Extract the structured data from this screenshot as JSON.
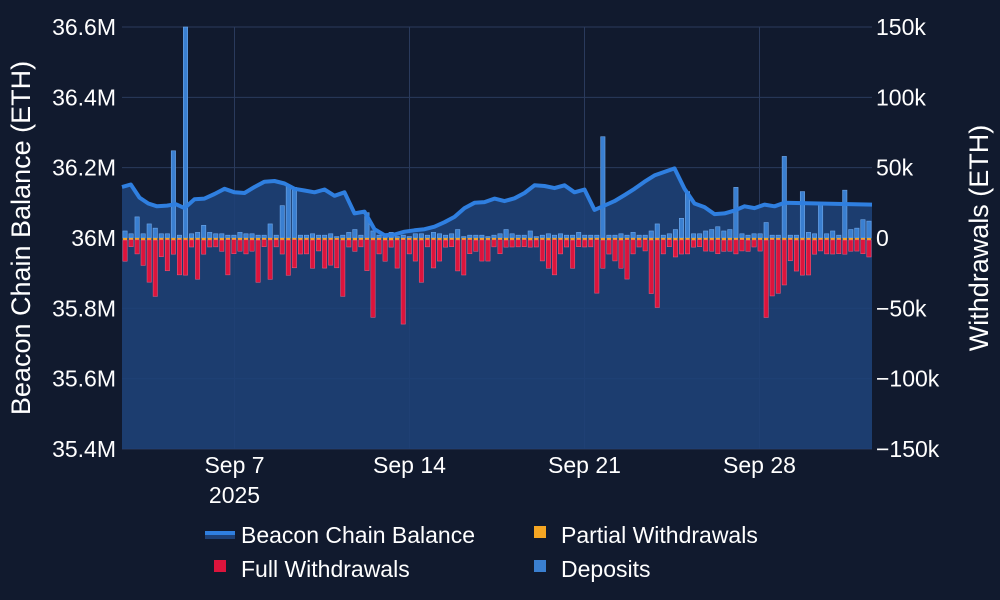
{
  "chart_data": {
    "type": "bar+area",
    "title": "",
    "x_ticks": [
      {
        "label": "Sep 7",
        "sublabel": "2025",
        "day": 7
      },
      {
        "label": "Sep 14",
        "sublabel": "",
        "day": 14
      },
      {
        "label": "Sep 21",
        "sublabel": "",
        "day": 21
      },
      {
        "label": "Sep 28",
        "sublabel": "",
        "day": 28
      }
    ],
    "x_range_days": [
      2.5,
      32.5
    ],
    "y_left": {
      "label": "Beacon Chain Balance (ETH)",
      "range": [
        35.4,
        36.6
      ],
      "ticks": [
        {
          "value": 35.4,
          "label": "35.4M"
        },
        {
          "value": 35.6,
          "label": "35.6M"
        },
        {
          "value": 35.8,
          "label": "35.8M"
        },
        {
          "value": 36.0,
          "label": "36M"
        },
        {
          "value": 36.2,
          "label": "36.2M"
        },
        {
          "value": 36.4,
          "label": "36.4M"
        },
        {
          "value": 36.6,
          "label": "36.6M"
        }
      ]
    },
    "y_right": {
      "label": "Withdrawals (ETH)",
      "range": [
        -150000,
        150000
      ],
      "ticks": [
        {
          "value": -150000,
          "label": "−150k"
        },
        {
          "value": -100000,
          "label": "−100k"
        },
        {
          "value": -50000,
          "label": "−50k"
        },
        {
          "value": 0,
          "label": "0"
        },
        {
          "value": 50000,
          "label": "50k"
        },
        {
          "value": 100000,
          "label": "100k"
        },
        {
          "value": 150000,
          "label": "150k"
        }
      ]
    },
    "legend": [
      {
        "key": "balance",
        "label": "Beacon Chain Balance",
        "color": "#2f7fe0",
        "kind": "line"
      },
      {
        "key": "partial",
        "label": "Partial Withdrawals",
        "color": "#f5a623",
        "kind": "square"
      },
      {
        "key": "full",
        "label": "Full Withdrawals",
        "color": "#dc143c",
        "kind": "square"
      },
      {
        "key": "deposits",
        "label": "Deposits",
        "color": "#3a7fd0",
        "kind": "square"
      }
    ],
    "colors": {
      "background": "#111a2e",
      "area_fill": "#1e4177",
      "balance_line": "#2f7fe0",
      "deposits": "#3a7fd0",
      "full_withdrawals": "#dc143c",
      "partial_withdrawals": "#f5a623",
      "grid": "#2a3a5c"
    },
    "series": [
      {
        "name": "Beacon Chain Balance",
        "axis": "left",
        "points": [
          {
            "day": 2.5,
            "value": 36.145
          },
          {
            "day": 2.85,
            "value": 36.152
          },
          {
            "day": 3.2,
            "value": 36.115
          },
          {
            "day": 3.55,
            "value": 36.098
          },
          {
            "day": 3.9,
            "value": 36.09
          },
          {
            "day": 4.3,
            "value": 36.092
          },
          {
            "day": 4.65,
            "value": 36.096
          },
          {
            "day": 5.0,
            "value": 36.085
          },
          {
            "day": 5.4,
            "value": 36.11
          },
          {
            "day": 5.8,
            "value": 36.112
          },
          {
            "day": 6.2,
            "value": 36.125
          },
          {
            "day": 6.6,
            "value": 36.14
          },
          {
            "day": 7.0,
            "value": 36.13
          },
          {
            "day": 7.4,
            "value": 36.128
          },
          {
            "day": 7.8,
            "value": 36.145
          },
          {
            "day": 8.2,
            "value": 36.16
          },
          {
            "day": 8.6,
            "value": 36.162
          },
          {
            "day": 9.0,
            "value": 36.155
          },
          {
            "day": 9.4,
            "value": 36.14
          },
          {
            "day": 9.8,
            "value": 36.135
          },
          {
            "day": 10.2,
            "value": 36.13
          },
          {
            "day": 10.6,
            "value": 36.138
          },
          {
            "day": 11.0,
            "value": 36.12
          },
          {
            "day": 11.4,
            "value": 36.13
          },
          {
            "day": 11.8,
            "value": 36.07
          },
          {
            "day": 12.2,
            "value": 36.075
          },
          {
            "day": 12.6,
            "value": 36.025
          },
          {
            "day": 13.0,
            "value": 36.008
          },
          {
            "day": 13.4,
            "value": 36.01
          },
          {
            "day": 13.8,
            "value": 36.018
          },
          {
            "day": 14.2,
            "value": 36.022
          },
          {
            "day": 14.6,
            "value": 36.025
          },
          {
            "day": 15.0,
            "value": 36.032
          },
          {
            "day": 15.4,
            "value": 36.045
          },
          {
            "day": 15.8,
            "value": 36.06
          },
          {
            "day": 16.2,
            "value": 36.085
          },
          {
            "day": 16.6,
            "value": 36.1
          },
          {
            "day": 17.0,
            "value": 36.102
          },
          {
            "day": 17.4,
            "value": 36.112
          },
          {
            "day": 17.8,
            "value": 36.105
          },
          {
            "day": 18.2,
            "value": 36.113
          },
          {
            "day": 18.6,
            "value": 36.128
          },
          {
            "day": 19.0,
            "value": 36.15
          },
          {
            "day": 19.4,
            "value": 36.148
          },
          {
            "day": 19.8,
            "value": 36.142
          },
          {
            "day": 20.2,
            "value": 36.15
          },
          {
            "day": 20.6,
            "value": 36.13
          },
          {
            "day": 21.0,
            "value": 36.138
          },
          {
            "day": 21.4,
            "value": 36.08
          },
          {
            "day": 21.8,
            "value": 36.092
          },
          {
            "day": 22.2,
            "value": 36.105
          },
          {
            "day": 22.6,
            "value": 36.122
          },
          {
            "day": 23.0,
            "value": 36.14
          },
          {
            "day": 23.4,
            "value": 36.16
          },
          {
            "day": 23.8,
            "value": 36.178
          },
          {
            "day": 24.2,
            "value": 36.188
          },
          {
            "day": 24.6,
            "value": 36.198
          },
          {
            "day": 25.0,
            "value": 36.14
          },
          {
            "day": 25.4,
            "value": 36.098
          },
          {
            "day": 25.8,
            "value": 36.088
          },
          {
            "day": 26.2,
            "value": 36.068
          },
          {
            "day": 26.6,
            "value": 36.07
          },
          {
            "day": 27.0,
            "value": 36.078
          },
          {
            "day": 27.4,
            "value": 36.09
          },
          {
            "day": 27.8,
            "value": 36.085
          },
          {
            "day": 28.2,
            "value": 36.095
          },
          {
            "day": 28.6,
            "value": 36.09
          },
          {
            "day": 29.0,
            "value": 36.1
          },
          {
            "day": 32.5,
            "value": 36.095
          }
        ]
      },
      {
        "name": "Deposits",
        "axis": "right",
        "bar_values": [
          5000,
          3000,
          15000,
          3000,
          10000,
          7000,
          3000,
          3000,
          62000,
          2000,
          150000,
          3000,
          4000,
          9000,
          4000,
          3000,
          3000,
          2000,
          2000,
          4000,
          3000,
          3000,
          2000,
          2000,
          10000,
          2000,
          23000,
          37000,
          36000,
          2000,
          2000,
          3000,
          2000,
          2000,
          3000,
          1000,
          2000,
          4000,
          6000,
          2000,
          18000,
          5000,
          2000,
          2000,
          4000,
          1000,
          2000,
          1000,
          3000,
          3000,
          2000,
          4000,
          3000,
          2000,
          3000,
          6000,
          1000,
          2000,
          2000,
          2000,
          1000,
          2000,
          3000,
          6000,
          3000,
          2000,
          2000,
          5000,
          1000,
          2000,
          3000,
          2000,
          3000,
          2000,
          2000,
          4000,
          2000,
          2000,
          2000,
          72000,
          2000,
          2000,
          3000,
          2000,
          4000,
          2000,
          2000,
          5000,
          10000,
          2000,
          3000,
          6000,
          14000,
          33000,
          3000,
          3000,
          5000,
          6000,
          8000,
          5000,
          6000,
          36000,
          3000,
          2000,
          3000,
          3000,
          11000,
          2000,
          2000,
          58000,
          2000,
          2000,
          33000,
          4000,
          3000,
          25000,
          3000,
          5000,
          2000,
          34000,
          6000,
          7000,
          13000,
          12000
        ]
      },
      {
        "name": "Full Withdrawals",
        "axis": "right",
        "bar_values": [
          -15000,
          -5000,
          -10000,
          -18000,
          -30000,
          -40000,
          -12000,
          -22000,
          -10000,
          -25000,
          -25000,
          -5000,
          -28000,
          -10000,
          -5000,
          -5000,
          -8000,
          -25000,
          -10000,
          -8000,
          -10000,
          -8000,
          -30000,
          -5000,
          -28000,
          -5000,
          -10000,
          -25000,
          -20000,
          -10000,
          -10000,
          -20000,
          -8000,
          -20000,
          -18000,
          -20000,
          -40000,
          -5000,
          -8000,
          -5000,
          -22000,
          -55000,
          -10000,
          -15000,
          -5000,
          -20000,
          -60000,
          -10000,
          -15000,
          -30000,
          -5000,
          -20000,
          -15000,
          -5000,
          -5000,
          -22000,
          -25000,
          -10000,
          -8000,
          -15000,
          -15000,
          -5000,
          -10000,
          -5000,
          -5000,
          -5000,
          -5000,
          -5000,
          -5000,
          -15000,
          -20000,
          -25000,
          -10000,
          -5000,
          -20000,
          -5000,
          -5000,
          -5000,
          -38000,
          -20000,
          -10000,
          -15000,
          -20000,
          -28000,
          -10000,
          -5000,
          -8000,
          -38000,
          -48000,
          -10000,
          -5000,
          -12000,
          -10000,
          -10000,
          -5000,
          -5000,
          -8000,
          -8000,
          -10000,
          -8000,
          -8000,
          -10000,
          -8000,
          -8000,
          -5000,
          -8000,
          -55000,
          -40000,
          -38000,
          -32000,
          -15000,
          -22000,
          -25000,
          -25000,
          -10000,
          -8000,
          -10000,
          -10000,
          -10000,
          -10000,
          -8000,
          -8000,
          -10000,
          -12000
        ]
      },
      {
        "name": "Partial Withdrawals",
        "axis": "right",
        "bar_values": [
          -1500,
          -1200,
          -1300,
          -1500,
          -1400,
          -1500,
          -1300,
          -1300,
          -1500,
          -1200,
          -1400,
          -1400,
          -1300,
          -1500,
          -1400,
          -1300,
          -1500,
          -1200,
          -1200,
          -1400,
          -1300,
          -1400,
          -1500,
          -1200,
          -1400,
          -1300,
          -1400,
          -1500,
          -1200,
          -1400,
          -1300,
          -1500,
          -1200,
          -1400,
          -1300,
          -1200,
          -1500,
          -1400,
          -1500,
          -1300,
          -1200,
          -1400,
          -1300,
          -1500,
          -1500,
          -1400,
          -1200,
          -1300,
          -1400,
          -1500,
          -1300,
          -1300,
          -1400,
          -1500,
          -1200,
          -1400,
          -1300,
          -1200,
          -1500,
          -1400,
          -1400,
          -1300,
          -1200,
          -1500,
          -1400,
          -1300,
          -1200,
          -1500,
          -1400,
          -1300,
          -1500,
          -1200,
          -1300,
          -1400,
          -1500,
          -1200,
          -1400,
          -1300,
          -1200,
          -1500,
          -1400,
          -1300,
          -1500,
          -1200,
          -1300,
          -1400,
          -1200,
          -1500,
          -1400,
          -1300,
          -1200,
          -1500,
          -1400,
          -1300,
          -1500,
          -1200,
          -1300,
          -1400,
          -1200,
          -1500,
          -1400,
          -1300,
          -1200,
          -1500,
          -1400,
          -1300,
          -1500,
          -1200,
          -1300,
          -1400,
          -1200,
          -1500,
          -1400,
          -1300,
          -1500,
          -1200,
          -1300,
          -1400,
          -1200,
          -1500,
          -1400,
          -1300,
          -1200,
          -1500
        ]
      }
    ]
  }
}
